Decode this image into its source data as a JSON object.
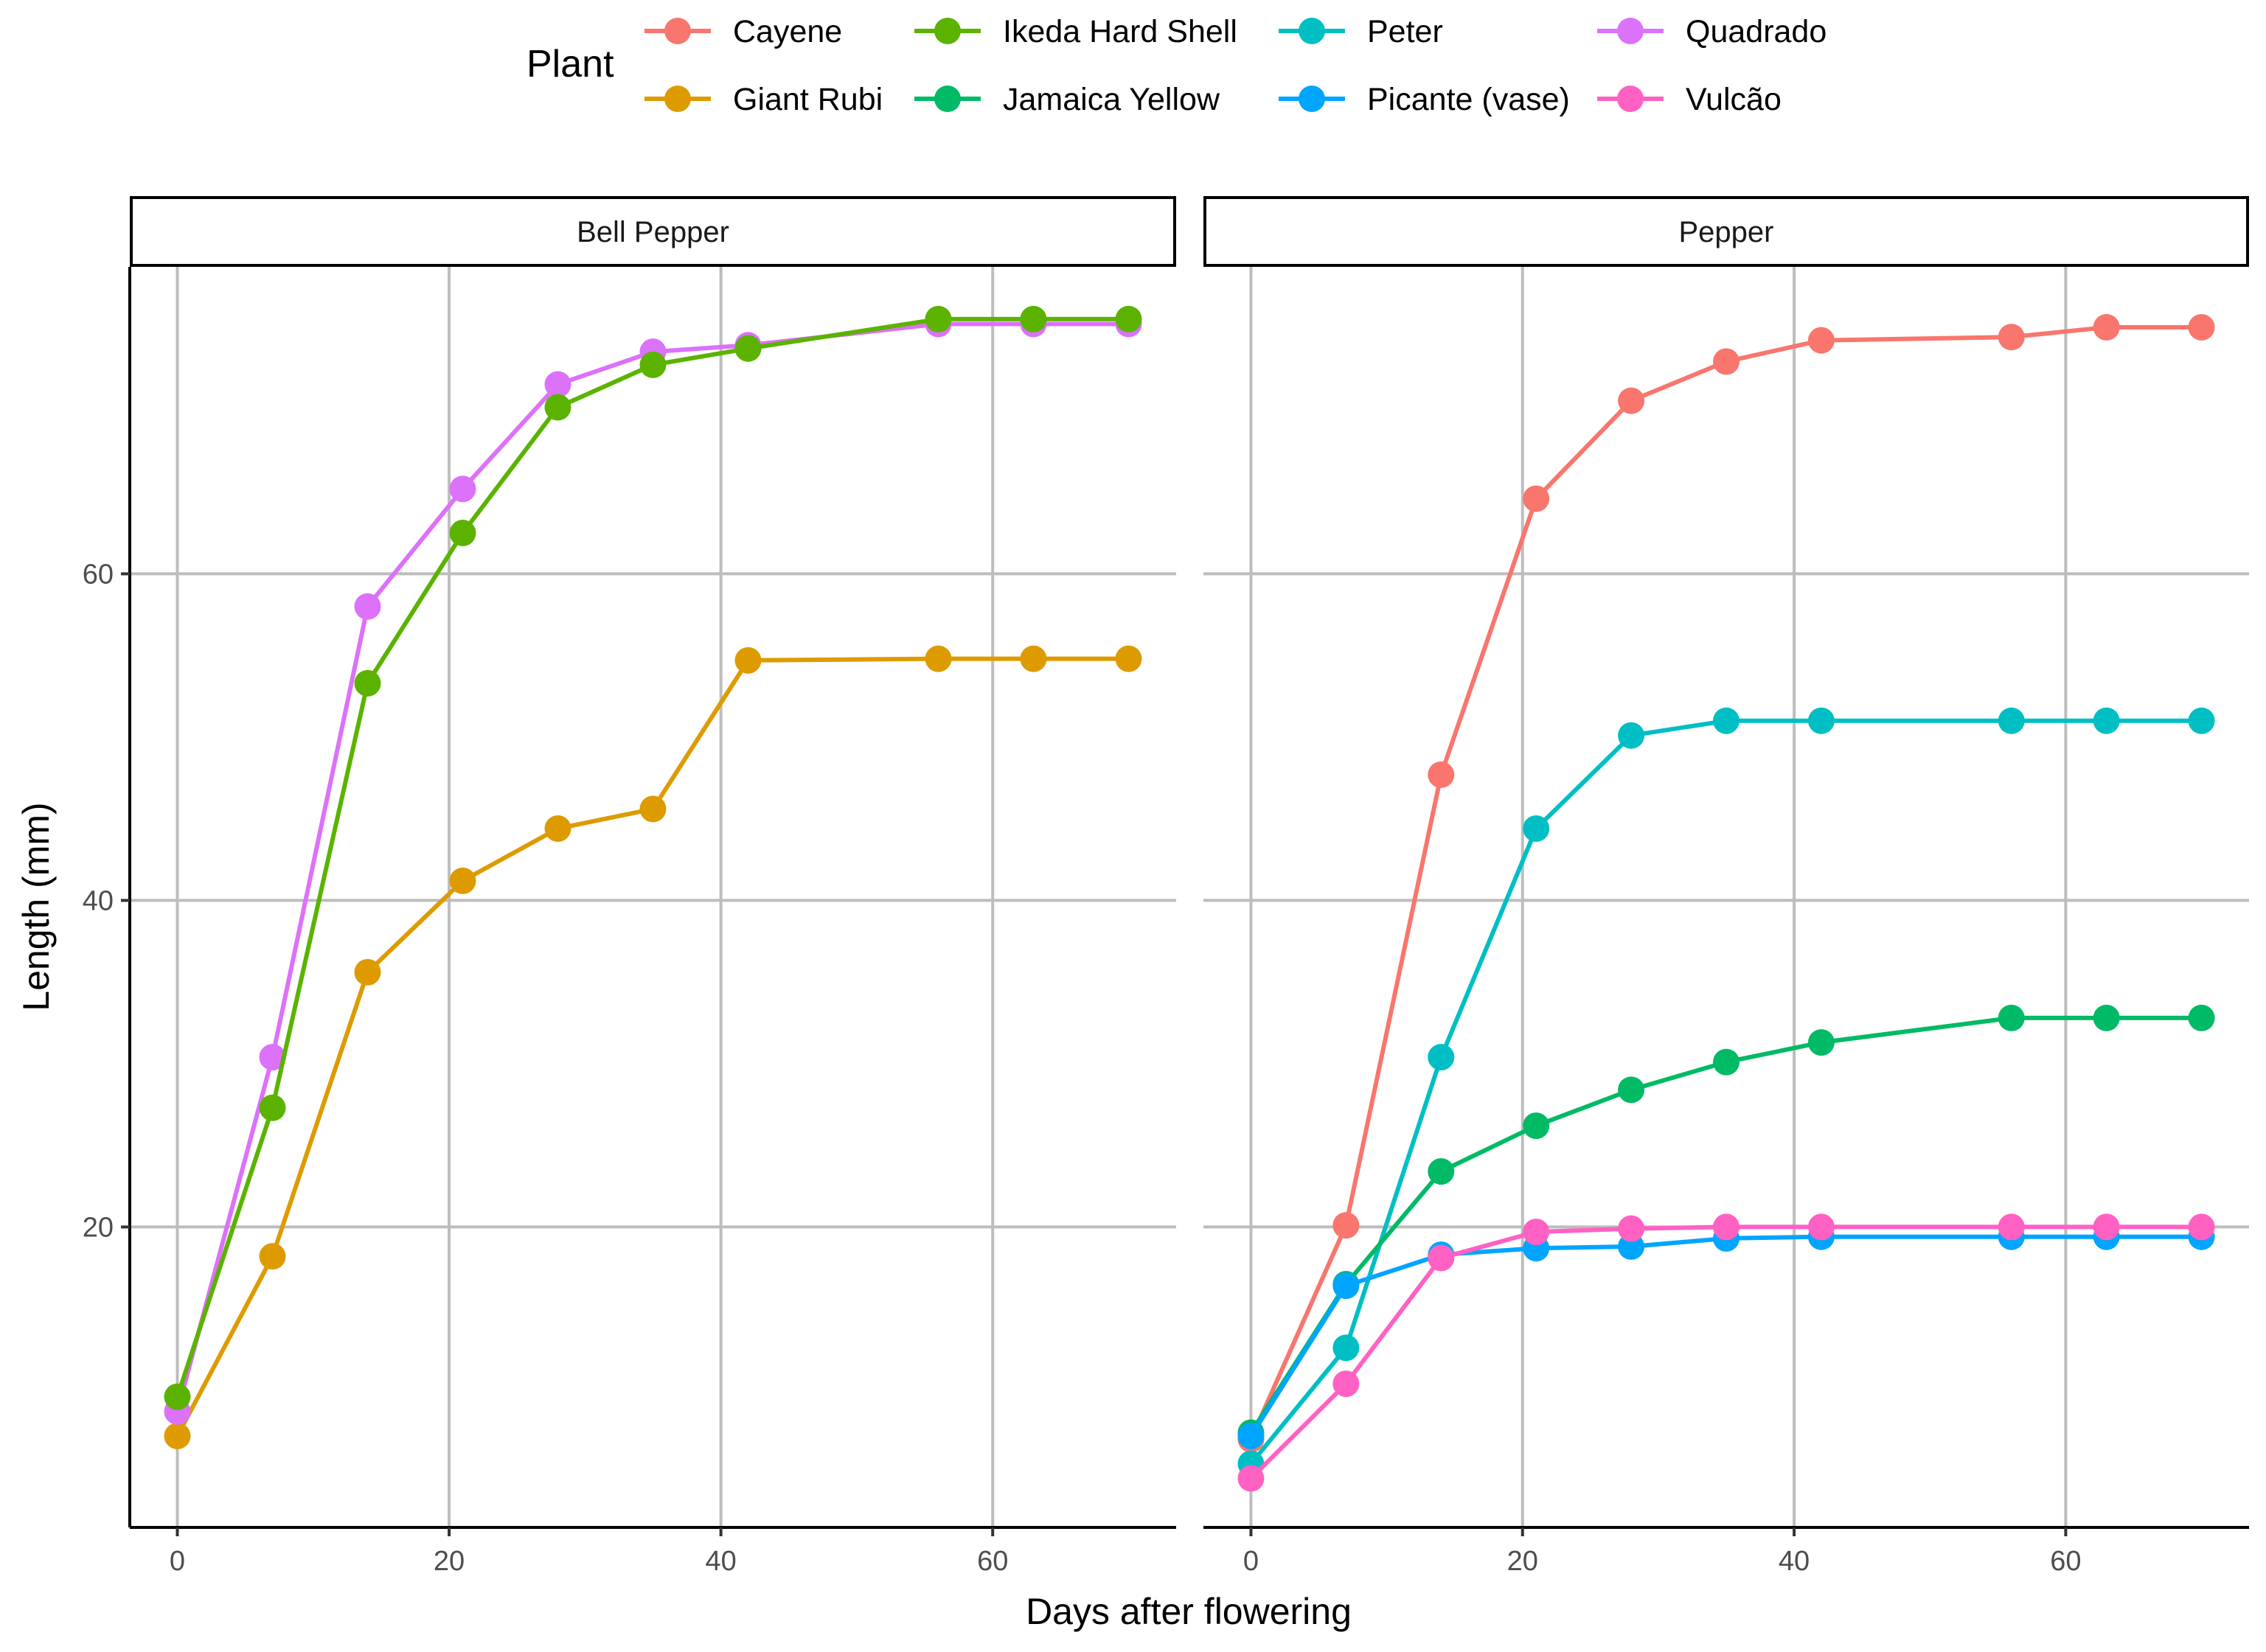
{
  "chart_data": {
    "type": "line",
    "xlabel": "Days after flowering",
    "ylabel": "Length (mm)",
    "xlim": [
      -3.5,
      73.5
    ],
    "ylim": [
      1.6,
      78.8
    ],
    "x_ticks": [
      0,
      20,
      40,
      60
    ],
    "y_ticks": [
      20,
      40,
      60
    ],
    "grid": true,
    "legend": {
      "title": "Plant",
      "position": "top",
      "entries": [
        {
          "name": "Cayene",
          "color": "#F8766D"
        },
        {
          "name": "Giant Rubi",
          "color": "#DE9B00"
        },
        {
          "name": "Ikeda Hard Shell",
          "color": "#5BB300"
        },
        {
          "name": "Jamaica Yellow",
          "color": "#00BA66"
        },
        {
          "name": "Peter",
          "color": "#00BFC4"
        },
        {
          "name": "Picante (vase)",
          "color": "#00A5FF"
        },
        {
          "name": "Quadrado",
          "color": "#DC71FA"
        },
        {
          "name": "Vulcão",
          "color": "#FF61C3"
        }
      ]
    },
    "panels": [
      {
        "title": "Bell Pepper",
        "series": [
          {
            "name": "Giant Rubi",
            "color": "#DE9B00",
            "x": [
              0,
              7,
              14,
              21,
              28,
              35,
              42,
              56,
              63,
              70
            ],
            "y": [
              7.2,
              18.2,
              35.6,
              41.2,
              44.4,
              45.6,
              54.7,
              54.8,
              54.8,
              54.8
            ]
          },
          {
            "name": "Quadrado",
            "color": "#DC71FA",
            "x": [
              0,
              7,
              14,
              21,
              28,
              35,
              42,
              56,
              63,
              70
            ],
            "y": [
              8.7,
              30.4,
              58.0,
              65.2,
              71.6,
              73.6,
              74.0,
              75.3,
              75.3,
              75.3
            ]
          },
          {
            "name": "Ikeda Hard Shell",
            "color": "#5BB300",
            "x": [
              0,
              7,
              14,
              21,
              28,
              35,
              42,
              56,
              63,
              70
            ],
            "y": [
              9.6,
              27.3,
              53.3,
              62.5,
              70.2,
              72.8,
              73.8,
              75.6,
              75.6,
              75.6
            ]
          }
        ]
      },
      {
        "title": "Pepper",
        "series": [
          {
            "name": "Cayene",
            "color": "#F8766D",
            "x": [
              0,
              7,
              14,
              21,
              28,
              35,
              42,
              56,
              63,
              70
            ],
            "y": [
              7.0,
              20.1,
              47.7,
              64.6,
              70.6,
              73.0,
              74.3,
              74.5,
              75.1,
              75.1
            ]
          },
          {
            "name": "Peter",
            "color": "#00BFC4",
            "x": [
              0,
              7,
              14,
              21,
              28,
              35,
              42,
              56,
              63,
              70
            ],
            "y": [
              5.5,
              12.6,
              30.4,
              44.4,
              50.1,
              51.0,
              51.0,
              51.0,
              51.0,
              51.0
            ]
          },
          {
            "name": "Jamaica Yellow",
            "color": "#00BA66",
            "x": [
              0,
              7,
              14,
              21,
              28,
              35,
              42,
              56,
              63,
              70
            ],
            "y": [
              7.4,
              16.5,
              23.4,
              26.2,
              28.4,
              30.1,
              31.3,
              32.8,
              32.8,
              32.8
            ]
          },
          {
            "name": "Picante (vase)",
            "color": "#00A5FF",
            "x": [
              0,
              7,
              14,
              21,
              28,
              35,
              42,
              56,
              63,
              70
            ],
            "y": [
              7.2,
              16.4,
              18.3,
              18.7,
              18.8,
              19.3,
              19.4,
              19.4,
              19.4,
              19.4
            ]
          },
          {
            "name": "Vulcão",
            "color": "#FF61C3",
            "x": [
              0,
              7,
              14,
              21,
              28,
              35,
              42,
              56,
              63,
              70
            ],
            "y": [
              4.6,
              10.4,
              18.1,
              19.7,
              19.9,
              20.0,
              20.0,
              20.0,
              20.0,
              20.0
            ]
          }
        ]
      }
    ]
  }
}
